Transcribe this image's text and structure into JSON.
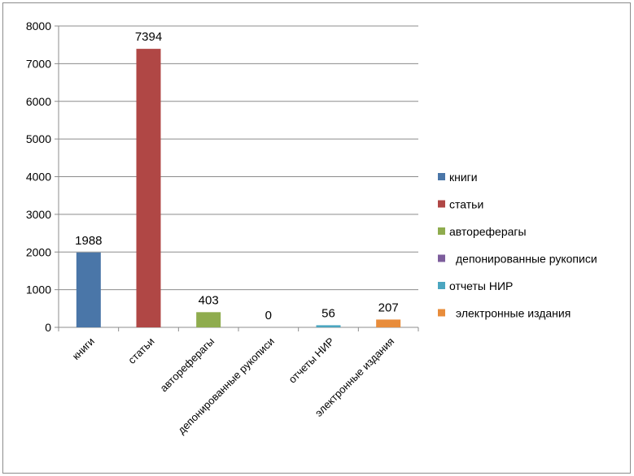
{
  "chart_data": {
    "type": "bar",
    "categories": [
      "книги",
      "статьи",
      "автореферагы",
      "депонированные рукописи",
      "отчеты НИР",
      "электронные издания"
    ],
    "values": [
      1988,
      7394,
      403,
      0,
      56,
      207
    ],
    "data_labels": [
      "1988",
      "7394",
      "403",
      "0",
      "56",
      "207"
    ],
    "colors": [
      "#4a76a8",
      "#b04745",
      "#8fac4e",
      "#7d5d9c",
      "#4ba6c0",
      "#e88c3b"
    ],
    "title": "",
    "xlabel": "",
    "ylabel": "",
    "ylim": [
      0,
      8000
    ],
    "yticks": [
      "0",
      "1000",
      "2000",
      "3000",
      "4000",
      "5000",
      "6000",
      "7000",
      "8000"
    ],
    "grid": true,
    "legend": {
      "placement": "right",
      "entries": [
        "книги",
        "статьи",
        "автореферагы",
        "депонированные рукописи",
        "отчеты НИР",
        "электронные издания"
      ]
    }
  }
}
